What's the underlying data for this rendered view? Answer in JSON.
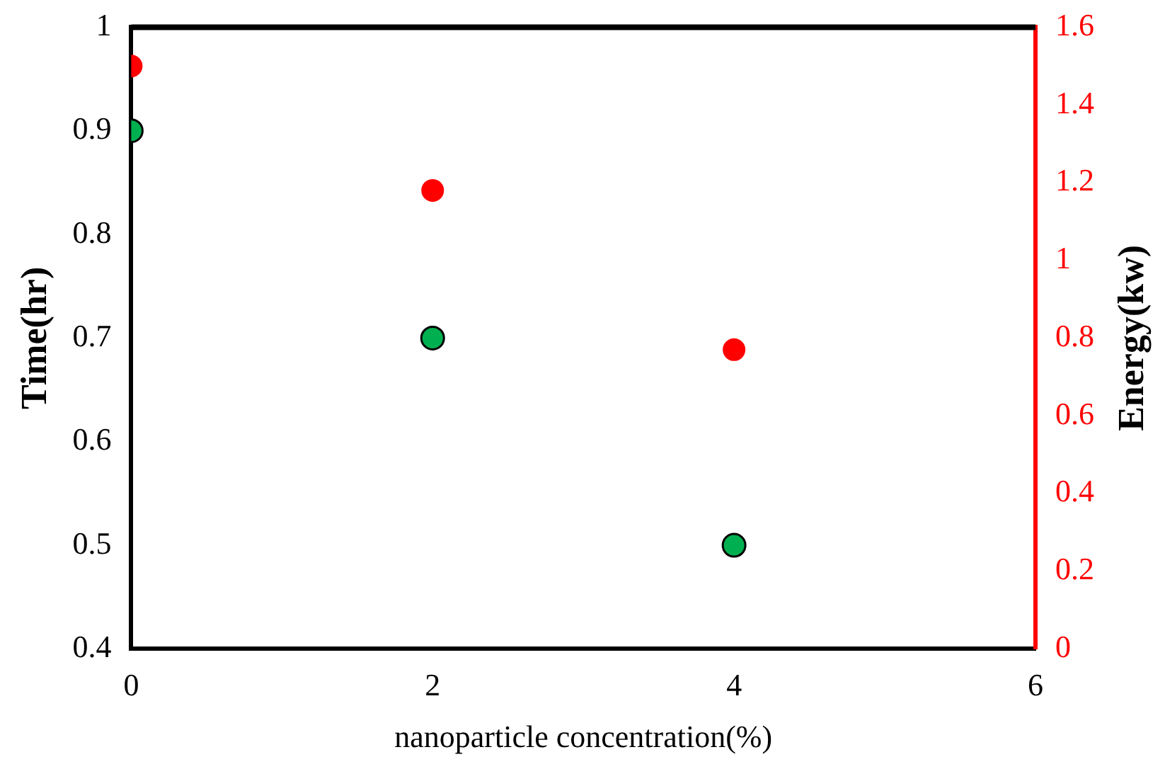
{
  "chart_data": {
    "type": "scatter",
    "xlabel": "nanoparticle concentration(%)",
    "ylabel": "Time(hr)",
    "y2label": "Energy(kw)",
    "x": [
      0,
      2,
      4
    ],
    "series": [
      {
        "color": "#00b050",
        "values": [
          0.9,
          0.7,
          0.5
        ]
      },
      {
        "color": "#ff0000",
        "values": [
          1.5,
          1.18,
          0.77
        ],
        "axis": "y2"
      }
    ],
    "xlim": [
      0,
      6
    ],
    "xticks": [
      0,
      2,
      4,
      6
    ],
    "ylim": [
      0.4,
      1
    ],
    "yticks": [
      0.4,
      0.5,
      0.6,
      0.7,
      0.8,
      0.9,
      1
    ],
    "y2lim": [
      0,
      1.6
    ],
    "y2ticks": [
      0,
      0.2,
      0.4,
      0.6,
      0.8,
      1,
      1.2,
      1.4,
      1.6
    ],
    "grid": false,
    "legend": false,
    "marker": "circle"
  }
}
